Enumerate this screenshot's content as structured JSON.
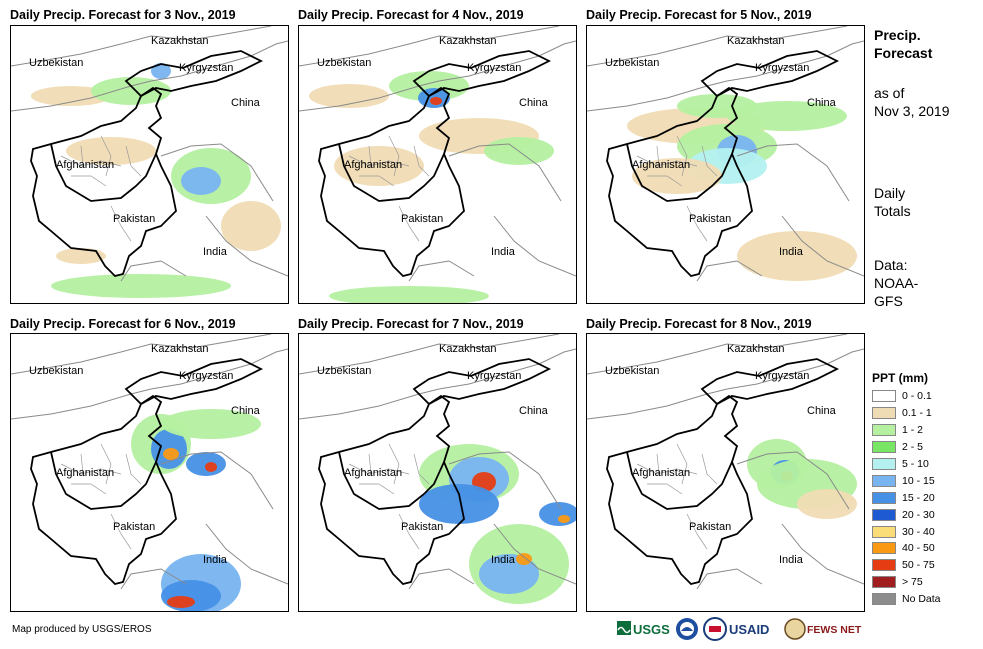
{
  "panels": [
    {
      "title": "Daily Precip. Forecast for 3 Nov., 2019",
      "day": 3
    },
    {
      "title": "Daily Precip. Forecast for 4 Nov., 2019",
      "day": 4
    },
    {
      "title": "Daily Precip. Forecast for 5 Nov., 2019",
      "day": 5
    },
    {
      "title": "Daily Precip. Forecast for 6 Nov., 2019",
      "day": 6
    },
    {
      "title": "Daily Precip. Forecast for 7 Nov., 2019",
      "day": 7
    },
    {
      "title": "Daily Precip. Forecast for 8 Nov., 2019",
      "day": 8
    }
  ],
  "map_labels": {
    "kazakhstan": "Kazakhstan",
    "uzbekistan": "Uzbekistan",
    "kyrgyzstan": "Kyrgyzstan",
    "china": "China",
    "afghanistan": "Afghanistan",
    "pakistan": "Pakistan",
    "india": "India"
  },
  "side_info": {
    "title_line1": "Precip.",
    "title_line2": "Forecast",
    "asof_line1": "as of",
    "asof_line2": "Nov 3, 2019",
    "totals_line1": "Daily",
    "totals_line2": "Totals",
    "data_line1": "Data:",
    "data_line2": "NOAA-",
    "data_line3": "GFS"
  },
  "legend": {
    "title": "PPT (mm)",
    "items": [
      {
        "label": "0 - 0.1",
        "color": "#ffffff"
      },
      {
        "label": "0.1 - 1",
        "color": "#f0dcb4"
      },
      {
        "label": "1 - 2",
        "color": "#b4f0a0"
      },
      {
        "label": "2 - 5",
        "color": "#78e664"
      },
      {
        "label": "5 - 10",
        "color": "#b4f0f0"
      },
      {
        "label": "10 - 15",
        "color": "#78b4f0"
      },
      {
        "label": "15 - 20",
        "color": "#4690e6"
      },
      {
        "label": "20 - 30",
        "color": "#1e5ad2"
      },
      {
        "label": "30 - 40",
        "color": "#fadc78"
      },
      {
        "label": "40 - 50",
        "color": "#fa9a14"
      },
      {
        "label": "50 - 75",
        "color": "#e63c14"
      },
      {
        "label": "> 75",
        "color": "#a01e1e"
      },
      {
        "label": "No Data",
        "color": "#8c8c8c"
      }
    ]
  },
  "footer": {
    "credit": "Map produced by USGS/EROS"
  },
  "logos": {
    "usgs": "USGS",
    "usaid": "USAID",
    "fewsnet": "FEWS NET"
  }
}
